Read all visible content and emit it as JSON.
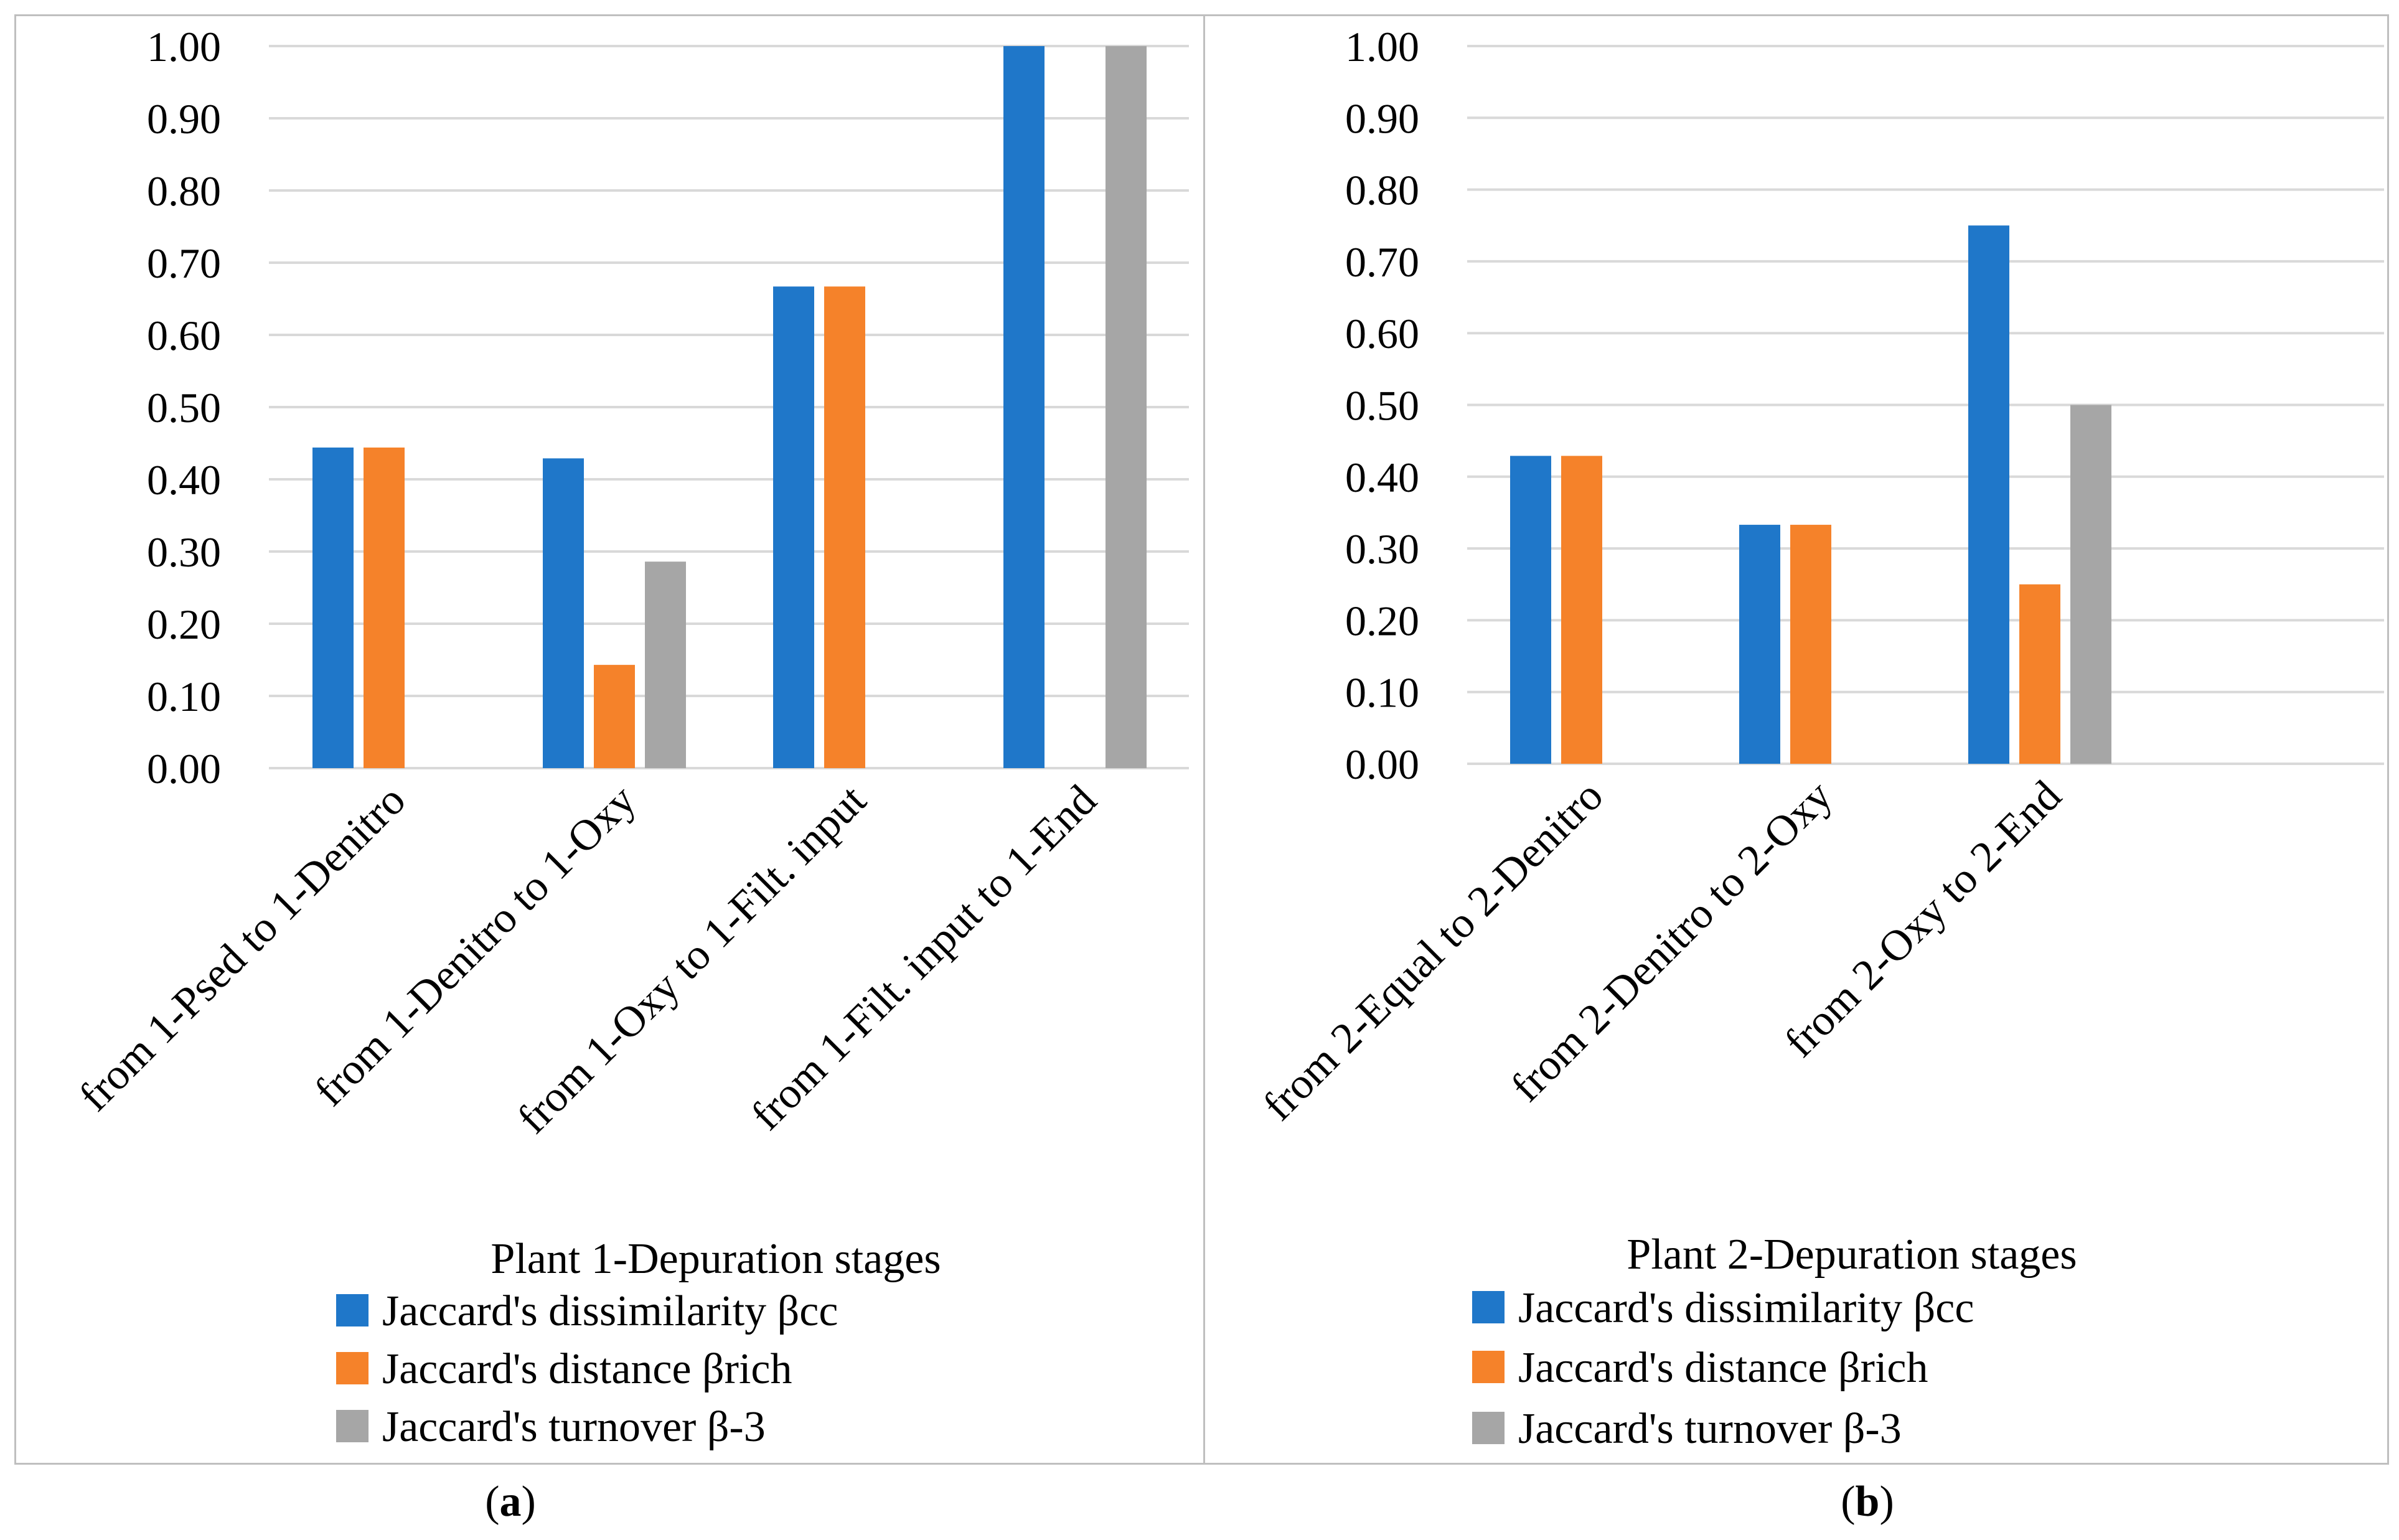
{
  "chart_data": [
    {
      "type": "bar",
      "panel_label": "a",
      "xlabel": "Plant 1-Depuration stages",
      "ylabel": "",
      "ylim": [
        0,
        1
      ],
      "yticks": [
        "0.00",
        "0.10",
        "0.20",
        "0.30",
        "0.40",
        "0.50",
        "0.60",
        "0.70",
        "0.80",
        "0.90",
        "1.00"
      ],
      "categories": [
        "from 1-Psed to 1-Denitro",
        "from 1-Denitro to 1-Oxy",
        "from 1-Oxy to 1-Filt. input",
        "from 1-Filt. input to 1-End"
      ],
      "series": [
        {
          "name": "Jaccard's dissimilarity βcc",
          "color": "#1f77c9",
          "values": [
            0.444,
            0.429,
            0.667,
            1.0
          ]
        },
        {
          "name": "Jaccard's distance βrich",
          "color": "#f5822a",
          "values": [
            0.444,
            0.143,
            0.667,
            0.0
          ]
        },
        {
          "name": "Jaccard's turnover β-3",
          "color": "#a6a6a6",
          "values": [
            0.0,
            0.286,
            0.0,
            1.0
          ]
        }
      ],
      "grid": true,
      "legend": "bottom"
    },
    {
      "type": "bar",
      "panel_label": "b",
      "xlabel": "Plant 2-Depuration stages",
      "ylabel": "",
      "ylim": [
        0,
        1
      ],
      "yticks": [
        "0.00",
        "0.10",
        "0.20",
        "0.30",
        "0.40",
        "0.50",
        "0.60",
        "0.70",
        "0.80",
        "0.90",
        "1.00"
      ],
      "categories": [
        "from 2-Equal to 2-Denitro",
        "from 2-Denitro to 2-Oxy",
        "from 2-Oxy to 2-End"
      ],
      "series": [
        {
          "name": "Jaccard's dissimilarity βcc",
          "color": "#1f77c9",
          "values": [
            0.429,
            0.333,
            0.75
          ]
        },
        {
          "name": "Jaccard's distance βrich",
          "color": "#f5822a",
          "values": [
            0.429,
            0.333,
            0.25
          ]
        },
        {
          "name": "Jaccard's turnover β-3",
          "color": "#a6a6a6",
          "values": [
            0.0,
            0.0,
            0.5
          ]
        }
      ],
      "grid": true,
      "legend": "bottom"
    }
  ]
}
